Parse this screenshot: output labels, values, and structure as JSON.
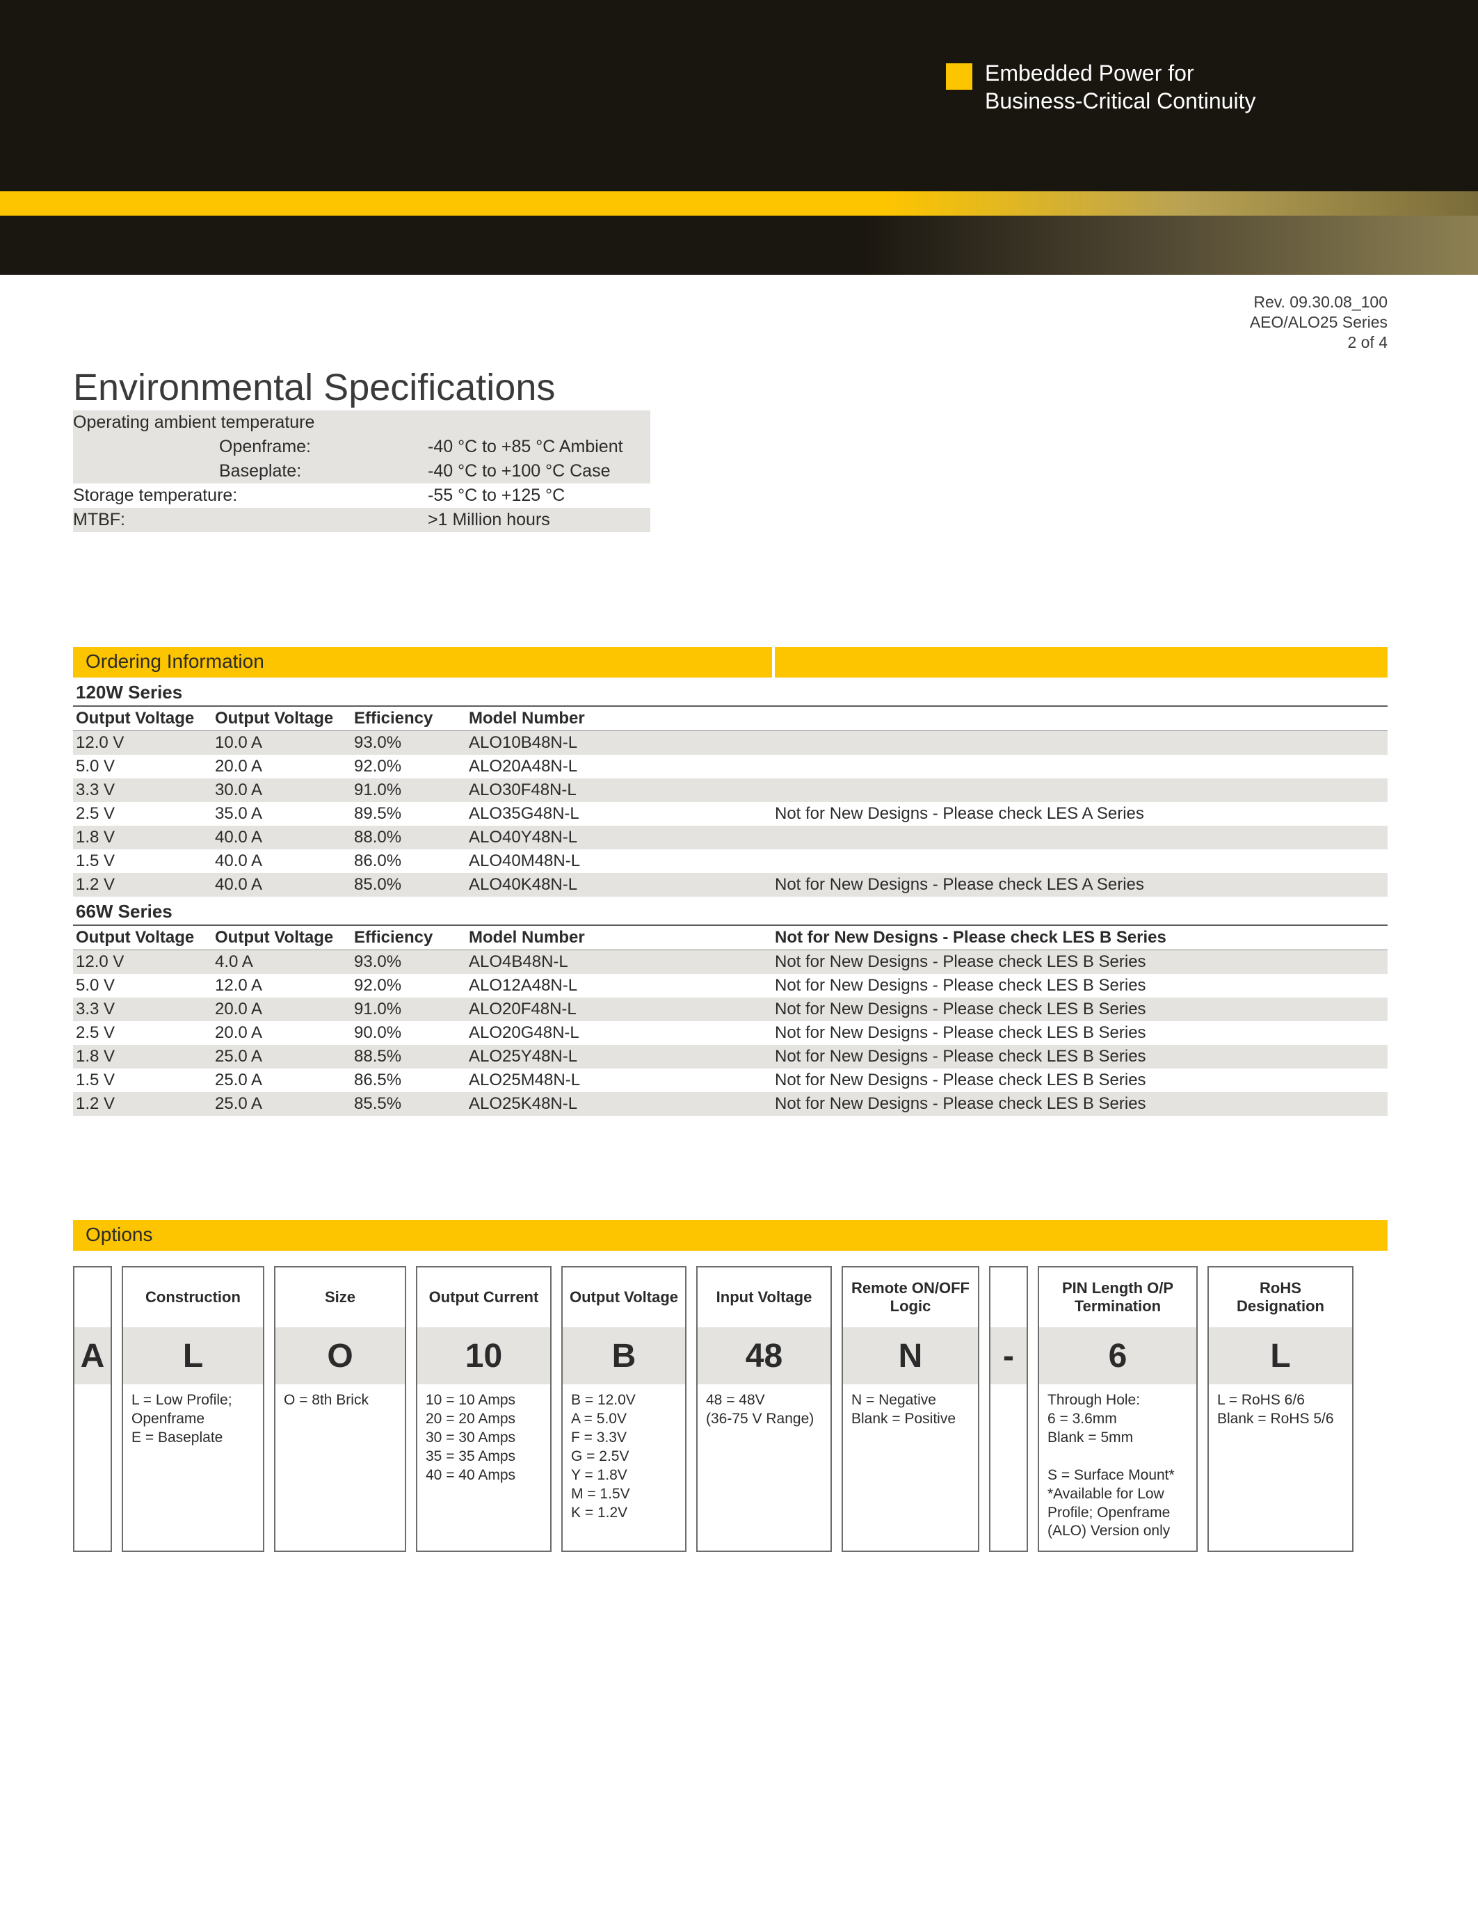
{
  "colors": {
    "accent_yellow": "#fdc500",
    "banner_dark": "#19150f",
    "row_shade": "#e4e3df",
    "rule": "#6c6c6c",
    "text": "#2b2b2b"
  },
  "brand": {
    "line1": "Embedded Power for",
    "line2": "Business-Critical Continuity"
  },
  "meta": {
    "rev": "Rev. 09.30.08_100",
    "series": "AEO/ALO25 Series",
    "page": "2 of 4"
  },
  "env": {
    "title": "Environmental Specifications",
    "rows": [
      {
        "label": "Operating ambient temperature",
        "value": "",
        "shaded": true
      },
      {
        "label": "Openframe:",
        "value": "-40 °C to +85 °C Ambient",
        "shaded": true,
        "sub": true
      },
      {
        "label": "Baseplate:",
        "value": "-40 °C to +100 °C Case",
        "shaded": true,
        "sub": true
      },
      {
        "label": "Storage temperature:",
        "value": "-55 °C to +125 °C",
        "shaded": false
      },
      {
        "label": "MTBF:",
        "value": ">1 Million hours",
        "shaded": true
      }
    ]
  },
  "ordering": {
    "bar_label": "Ordering Information",
    "columns": [
      "Output Voltage",
      "Output Voltage",
      "Efficiency",
      "Model Number"
    ],
    "groups": [
      {
        "name": "120W Series",
        "rows": [
          {
            "ov": "12.0 V",
            "oc": "10.0 A",
            "eff": "93.0%",
            "model": "ALO10B48N-L",
            "note": ""
          },
          {
            "ov": "5.0 V",
            "oc": "20.0 A",
            "eff": "92.0%",
            "model": "ALO20A48N-L",
            "note": ""
          },
          {
            "ov": "3.3 V",
            "oc": "30.0 A",
            "eff": "91.0%",
            "model": "ALO30F48N-L",
            "note": ""
          },
          {
            "ov": "2.5 V",
            "oc": "35.0 A",
            "eff": "89.5%",
            "model": "ALO35G48N-L",
            "note": "Not for New Designs - Please check LES A Series"
          },
          {
            "ov": "1.8 V",
            "oc": "40.0 A",
            "eff": "88.0%",
            "model": "ALO40Y48N-L",
            "note": ""
          },
          {
            "ov": "1.5 V",
            "oc": "40.0 A",
            "eff": "86.0%",
            "model": "ALO40M48N-L",
            "note": ""
          },
          {
            "ov": "1.2 V",
            "oc": "40.0 A",
            "eff": "85.0%",
            "model": "ALO40K48N-L",
            "note": "Not for New Designs - Please check LES A Series"
          }
        ]
      },
      {
        "name": "66W Series",
        "header_note": "Not for New Designs - Please check LES B Series",
        "rows": [
          {
            "ov": "12.0 V",
            "oc": "4.0 A",
            "eff": "93.0%",
            "model": "ALO4B48N-L",
            "note": "Not for New Designs - Please check LES B Series"
          },
          {
            "ov": "5.0 V",
            "oc": "12.0 A",
            "eff": "92.0%",
            "model": "ALO12A48N-L",
            "note": "Not for New Designs - Please check LES B Series"
          },
          {
            "ov": "3.3 V",
            "oc": "20.0 A",
            "eff": "91.0%",
            "model": "ALO20F48N-L",
            "note": "Not for New Designs - Please check LES B Series"
          },
          {
            "ov": "2.5 V",
            "oc": "20.0 A",
            "eff": "90.0%",
            "model": "ALO20G48N-L",
            "note": "Not for New Designs - Please check LES B Series"
          },
          {
            "ov": "1.8 V",
            "oc": "25.0 A",
            "eff": "88.5%",
            "model": "ALO25Y48N-L",
            "note": "Not for New Designs - Please check LES B Series"
          },
          {
            "ov": "1.5 V",
            "oc": "25.0 A",
            "eff": "86.5%",
            "model": "ALO25M48N-L",
            "note": "Not for New Designs - Please check LES B Series"
          },
          {
            "ov": "1.2 V",
            "oc": "25.0 A",
            "eff": "85.5%",
            "model": "ALO25K48N-L",
            "note": "Not for New Designs - Please check LES B Series"
          }
        ]
      }
    ]
  },
  "options": {
    "bar_label": "Options",
    "prefix": "A",
    "dash": "-",
    "boxes": [
      {
        "w": "w-construction",
        "head": "Construction",
        "val": "L",
        "desc": "L = Low Profile;\n  Openframe\nE = Baseplate"
      },
      {
        "w": "w-size",
        "head": "Size",
        "val": "O",
        "desc": "O = 8th Brick"
      },
      {
        "w": "w-current",
        "head": "Output Current",
        "val": "10",
        "desc": "10 = 10 Amps\n20 = 20 Amps\n30 = 30 Amps\n35 = 35 Amps\n40 = 40 Amps"
      },
      {
        "w": "w-voltage",
        "head": "Output Voltage",
        "val": "B",
        "desc": "B = 12.0V\nA = 5.0V\nF = 3.3V\nG = 2.5V\nY = 1.8V\nM = 1.5V\nK = 1.2V"
      },
      {
        "w": "w-input",
        "head": "Input Voltage",
        "val": "48",
        "desc": "48 = 48V\n(36-75 V Range)"
      },
      {
        "w": "w-logic",
        "head": "Remote ON/OFF\nLogic",
        "val": "N",
        "desc": "N = Negative\nBlank = Positive"
      }
    ],
    "boxes_after_dash": [
      {
        "w": "w-pin",
        "head": "PIN Length O/P\nTermination",
        "val": "6",
        "desc": "Through Hole:\n6 = 3.6mm\nBlank = 5mm\n\nS = Surface Mount*\n*Available for Low\nProfile; Openframe\n(ALO) Version only"
      },
      {
        "w": "w-rohs",
        "head": "RoHS\nDesignation",
        "val": "L",
        "desc": "L = RoHS 6/6\nBlank = RoHS 5/6"
      }
    ]
  }
}
